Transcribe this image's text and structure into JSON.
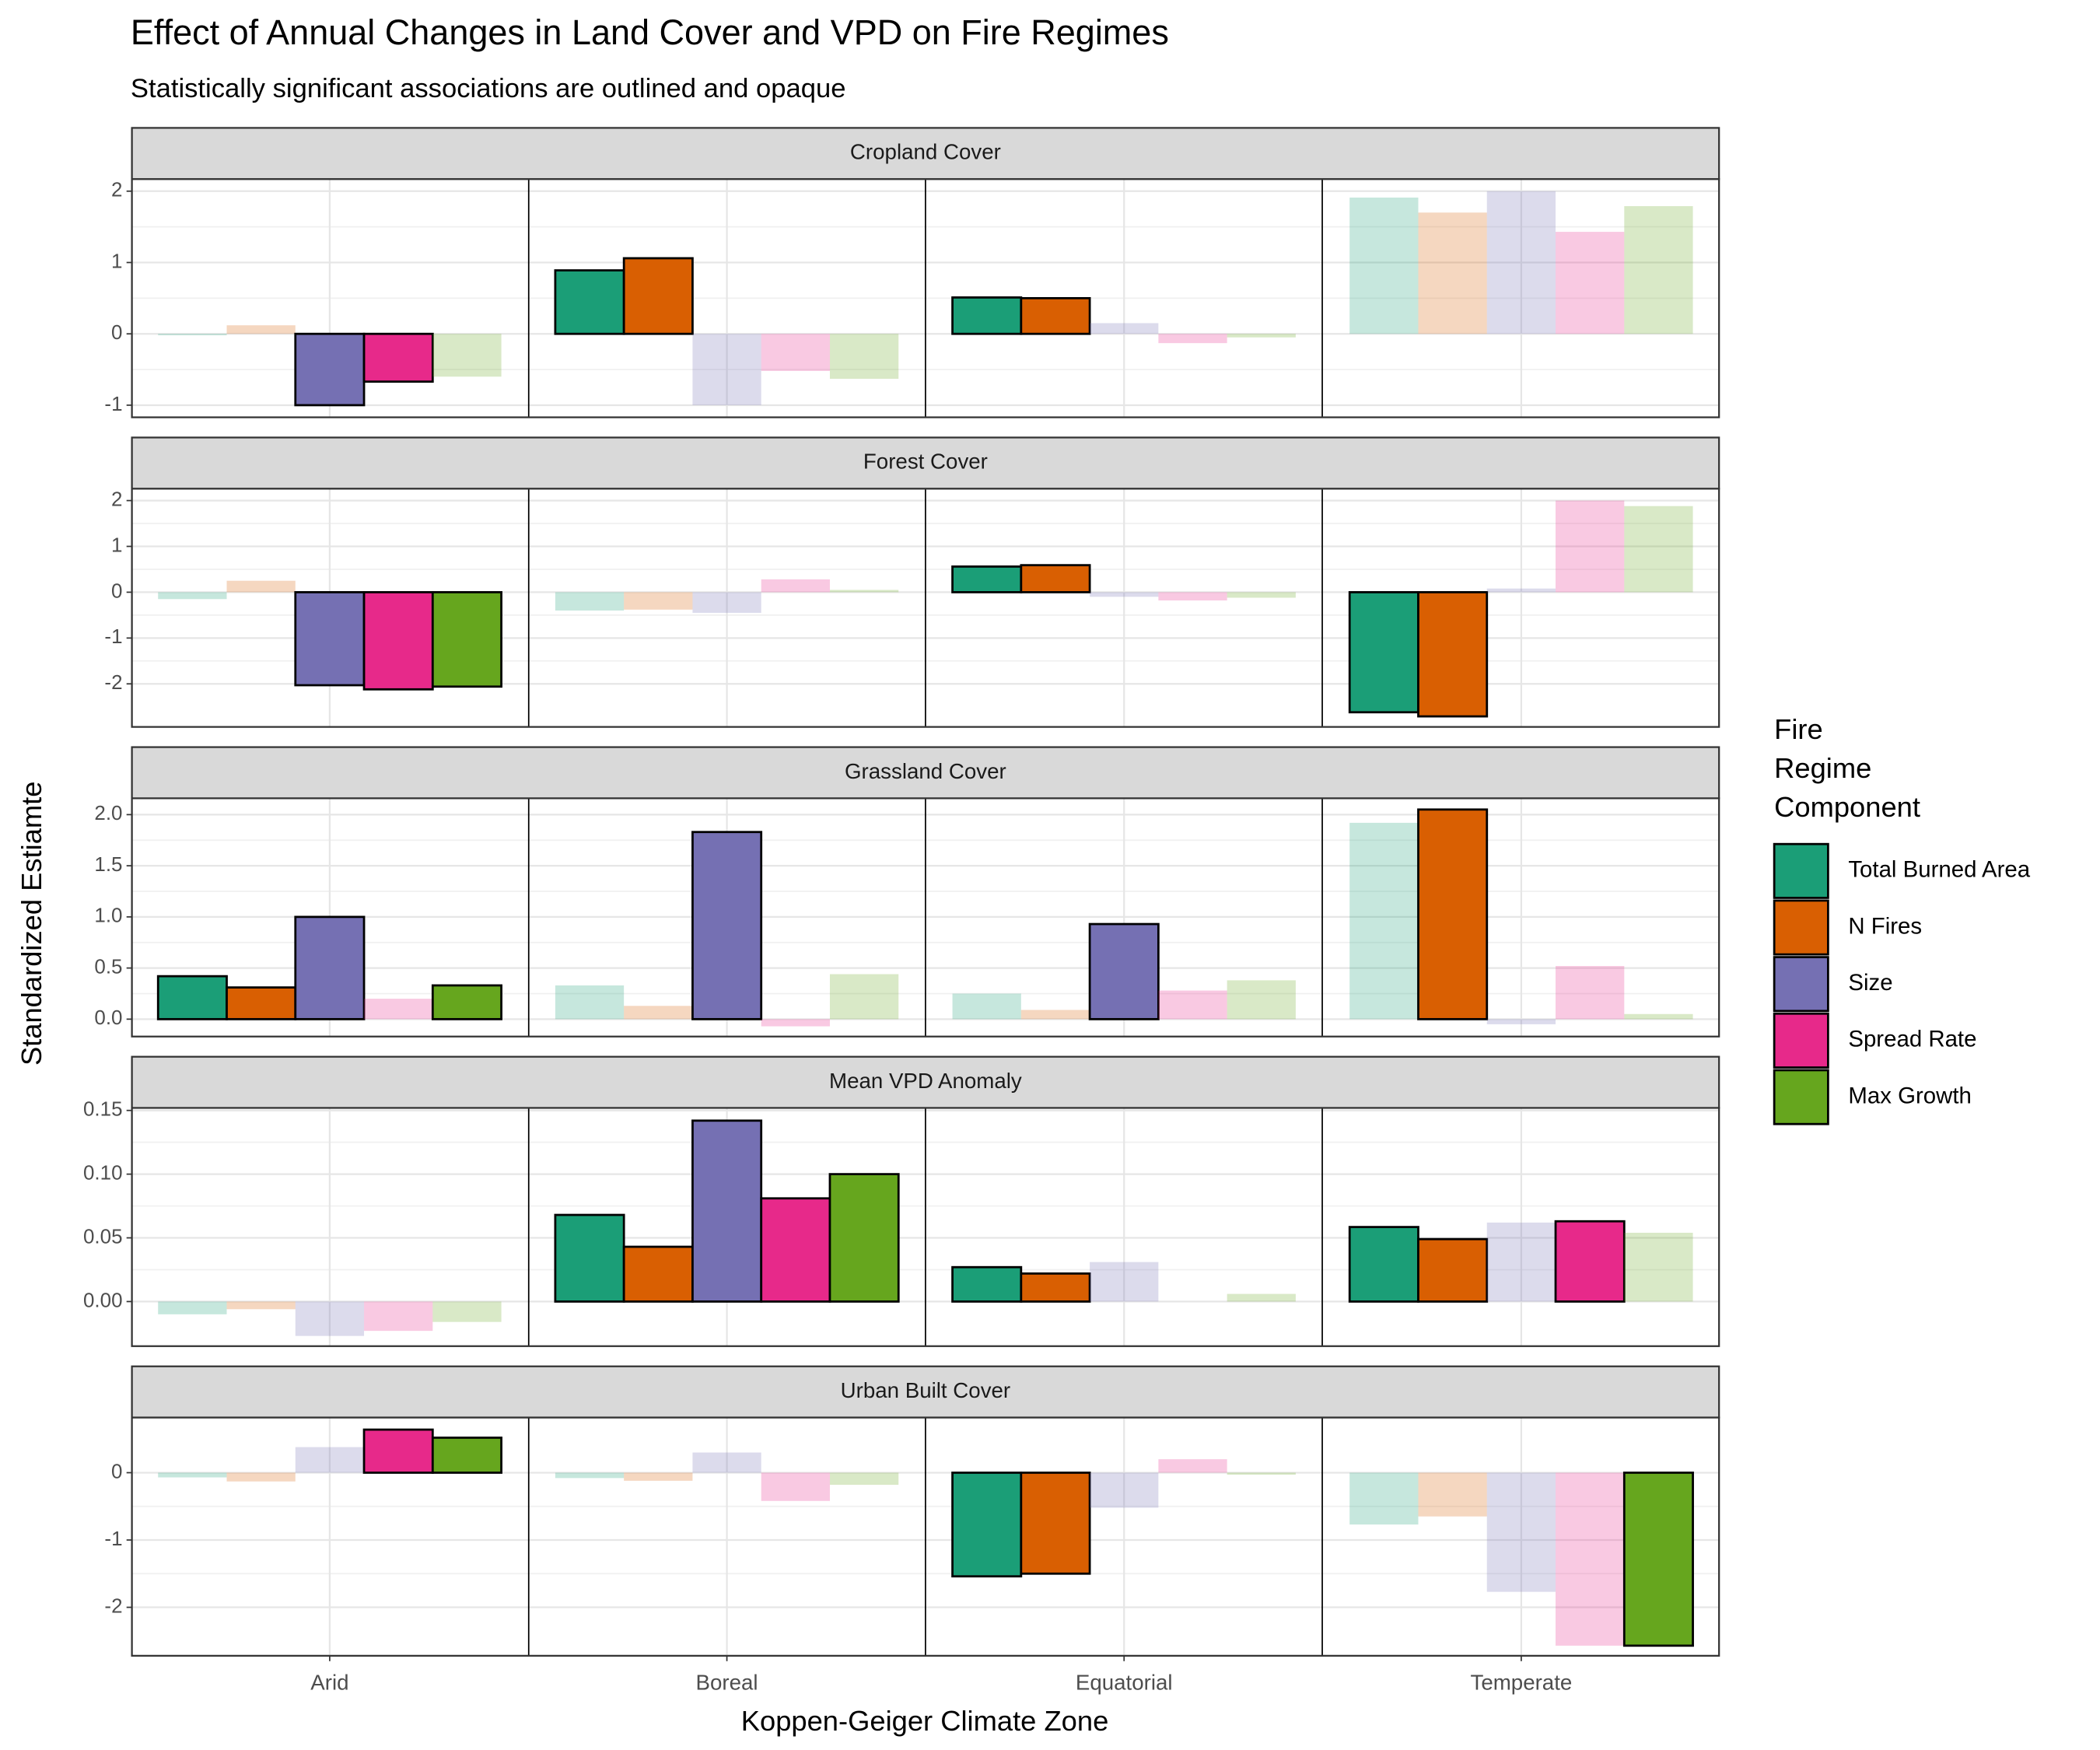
{
  "chart_data": {
    "type": "bar",
    "title": "Effect of Annual Changes in Land Cover and VPD on Fire Regimes",
    "subtitle": "Statistically significant associations are outlined and opaque",
    "x_label": "Koppen-Geiger Climate Zone",
    "y_label": "Standardized Estiamte",
    "legend_title": "Fire Regime Component",
    "categories": [
      "Arid",
      "Boreal",
      "Equatorial",
      "Temperate"
    ],
    "series": [
      {
        "name": "Total Burned Area",
        "color": "#1b9e77"
      },
      {
        "name": "N Fires",
        "color": "#d95f02"
      },
      {
        "name": "Size",
        "color": "#7570b3"
      },
      {
        "name": "Spread Rate",
        "color": "#e7298a"
      },
      {
        "name": "Max Growth",
        "color": "#66a61e"
      }
    ],
    "grid": true,
    "facets": [
      {
        "title": "Cropland Cover",
        "ylim": [
          -1.17,
          2.17
        ],
        "yticks": [
          -1,
          0,
          1,
          2
        ],
        "series": [
          {
            "values": [
              -0.02,
              0.89,
              0.51,
              1.91
            ],
            "significant": [
              false,
              true,
              true,
              false
            ]
          },
          {
            "values": [
              0.12,
              1.06,
              0.5,
              1.7
            ],
            "significant": [
              false,
              true,
              true,
              false
            ]
          },
          {
            "values": [
              -1.0,
              -1.0,
              0.15,
              2.0
            ],
            "significant": [
              true,
              false,
              false,
              false
            ]
          },
          {
            "values": [
              -0.67,
              -0.52,
              -0.13,
              1.43
            ],
            "significant": [
              true,
              false,
              false,
              false
            ]
          },
          {
            "values": [
              -0.6,
              -0.63,
              -0.05,
              1.79
            ],
            "significant": [
              false,
              false,
              false,
              false
            ]
          }
        ]
      },
      {
        "title": "Forest Cover",
        "ylim": [
          -2.94,
          2.26
        ],
        "yticks": [
          -2,
          -1,
          0,
          1,
          2
        ],
        "series": [
          {
            "values": [
              -0.15,
              -0.4,
              0.56,
              -2.62
            ],
            "significant": [
              false,
              false,
              true,
              true
            ]
          },
          {
            "values": [
              0.25,
              -0.38,
              0.59,
              -2.71
            ],
            "significant": [
              false,
              false,
              true,
              true
            ]
          },
          {
            "values": [
              -2.03,
              -0.45,
              -0.1,
              0.08
            ],
            "significant": [
              true,
              false,
              false,
              false
            ]
          },
          {
            "values": [
              -2.12,
              0.28,
              -0.18,
              2.0
            ],
            "significant": [
              true,
              false,
              false,
              false
            ]
          },
          {
            "values": [
              -2.06,
              0.05,
              -0.12,
              1.88
            ],
            "significant": [
              true,
              false,
              false,
              false
            ]
          }
        ]
      },
      {
        "title": "Grassland Cover",
        "ylim": [
          -0.17,
          2.16
        ],
        "yticks": [
          {
            "value": 0,
            "label": "0.0"
          },
          0.5,
          {
            "value": 1,
            "label": "1.0"
          },
          1.5,
          {
            "value": 2,
            "label": "2.0"
          }
        ],
        "series": [
          {
            "values": [
              0.42,
              0.33,
              0.25,
              1.92
            ],
            "significant": [
              true,
              false,
              false,
              false
            ]
          },
          {
            "values": [
              0.31,
              0.13,
              0.09,
              2.05
            ],
            "significant": [
              true,
              false,
              false,
              true
            ]
          },
          {
            "values": [
              1.0,
              1.83,
              0.93,
              -0.05
            ],
            "significant": [
              true,
              true,
              true,
              false
            ]
          },
          {
            "values": [
              0.2,
              -0.07,
              0.28,
              0.52
            ],
            "significant": [
              false,
              false,
              false,
              false
            ]
          },
          {
            "values": [
              0.33,
              0.44,
              0.38,
              0.05
            ],
            "significant": [
              true,
              false,
              false,
              false
            ]
          }
        ]
      },
      {
        "title": "Mean VPD Anomaly",
        "ylim": [
          -0.035,
          0.152
        ],
        "yticks": [
          {
            "value": 0,
            "label": "0.00"
          },
          {
            "value": 0.05,
            "label": "0.05"
          },
          {
            "value": 0.1,
            "label": "0.10"
          },
          {
            "value": 0.15,
            "label": "0.15"
          }
        ],
        "series": [
          {
            "values": [
              -0.01,
              0.068,
              0.027,
              0.0585
            ],
            "significant": [
              false,
              true,
              true,
              true
            ]
          },
          {
            "values": [
              -0.006,
              0.043,
              0.022,
              0.049
            ],
            "significant": [
              false,
              true,
              true,
              true
            ]
          },
          {
            "values": [
              -0.027,
              0.142,
              0.031,
              0.062
            ],
            "significant": [
              false,
              true,
              false,
              false
            ]
          },
          {
            "values": [
              -0.023,
              0.081,
              0,
              0.063
            ],
            "significant": [
              false,
              true,
              false,
              true
            ]
          },
          {
            "values": [
              -0.016,
              0.1,
              0.006,
              0.054
            ],
            "significant": [
              false,
              true,
              false,
              false
            ]
          }
        ]
      },
      {
        "title": "Urban Built Cover",
        "ylim": [
          -2.72,
          0.82
        ],
        "yticks": [
          -2,
          -1,
          0
        ],
        "series": [
          {
            "values": [
              -0.07,
              -0.08,
              -1.54,
              -0.77
            ],
            "significant": [
              false,
              false,
              true,
              false
            ]
          },
          {
            "values": [
              -0.13,
              -0.12,
              -1.5,
              -0.65
            ],
            "significant": [
              false,
              false,
              true,
              false
            ]
          },
          {
            "values": [
              0.38,
              0.3,
              -0.52,
              -1.77
            ],
            "significant": [
              false,
              false,
              false,
              false
            ]
          },
          {
            "values": [
              0.64,
              -0.42,
              0.2,
              -2.57
            ],
            "significant": [
              true,
              false,
              false,
              false
            ]
          },
          {
            "values": [
              0.52,
              -0.18,
              -0.03,
              -2.57
            ],
            "significant": [
              true,
              false,
              false,
              true
            ]
          }
        ]
      }
    ]
  }
}
